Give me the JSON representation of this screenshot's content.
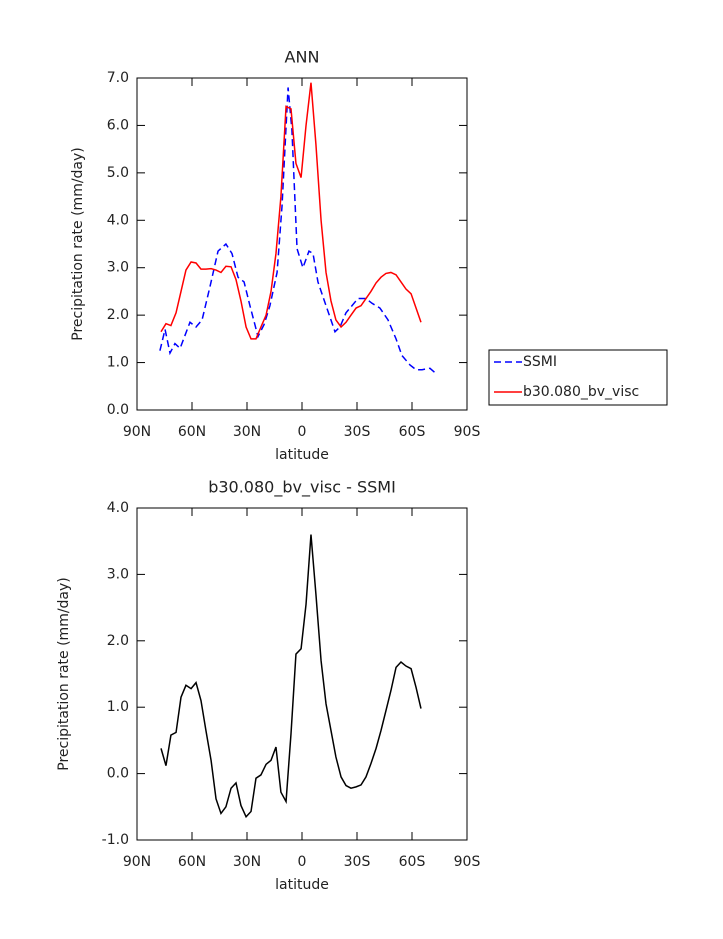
{
  "chart_data": [
    {
      "type": "line",
      "title": "ANN",
      "x_label": "latitude",
      "y_label": "Precipitation rate (mm/day)",
      "xlim": [
        90,
        -90
      ],
      "xticks": [
        {
          "value": 90,
          "label": "90N"
        },
        {
          "value": 60,
          "label": "60N"
        },
        {
          "value": 30,
          "label": "30N"
        },
        0,
        {
          "value": -30,
          "label": "30S"
        },
        {
          "value": -60,
          "label": "60S"
        },
        {
          "value": -90,
          "label": "90S"
        }
      ],
      "ylim": [
        0,
        7
      ],
      "yticks": [
        {
          "value": 0,
          "label": "0.0"
        },
        {
          "value": 1,
          "label": "1.0"
        },
        {
          "value": 2,
          "label": "2.0"
        },
        {
          "value": 3,
          "label": "3.0"
        },
        {
          "value": 4,
          "label": "4.0"
        },
        {
          "value": 5,
          "label": "5.0"
        },
        {
          "value": 6,
          "label": "6.0"
        },
        {
          "value": 7,
          "label": "7.0"
        }
      ],
      "legend": "right",
      "series": [
        {
          "name": "SSMI",
          "color": "#0000ff",
          "dash": true,
          "x": [
            77.5,
            74.7,
            72,
            69.3,
            66.5,
            61.1,
            57.8,
            54.5,
            50.2,
            45.8,
            41.5,
            38.2,
            34.9,
            31.6,
            28.4,
            24,
            20.7,
            17.5,
            13.6,
            10.9,
            7.6,
            5.5,
            2.7,
            -0.5,
            -3.8,
            -6,
            -8.7,
            -13.1,
            -18,
            -20.7,
            -24,
            -27.3,
            -30.5,
            -34.9,
            -38.2,
            -42.5,
            -46.9,
            -51.3,
            -54.5,
            -58.9,
            -62.2,
            -65.5,
            -69.8,
            -73.6
          ],
          "values": [
            1.25,
            1.7,
            1.2,
            1.4,
            1.3,
            1.85,
            1.75,
            1.9,
            2.6,
            3.35,
            3.5,
            3.3,
            2.8,
            2.7,
            2.2,
            1.55,
            1.8,
            2.2,
            2.9,
            4.3,
            6.8,
            5.9,
            3.4,
            3.0,
            3.35,
            3.3,
            2.7,
            2.2,
            1.65,
            1.75,
            2.05,
            2.2,
            2.35,
            2.35,
            2.25,
            2.15,
            1.9,
            1.5,
            1.15,
            0.95,
            0.85,
            0.85,
            0.88,
            0.75
          ]
        },
        {
          "name": "b30.080_bv_visc",
          "color": "#ff0000",
          "dash": false,
          "x": [
            76.9,
            74.2,
            71.5,
            68.7,
            66.0,
            63.3,
            60.5,
            57.8,
            55.1,
            52.4,
            49.6,
            46.9,
            44.2,
            41.5,
            38.7,
            36.0,
            33.3,
            30.5,
            27.8,
            25.1,
            22.4,
            19.6,
            16.9,
            14.2,
            11.5,
            8.7,
            6.0,
            3.3,
            0.5,
            -2.2,
            -4.9,
            -7.6,
            -10.4,
            -13.1,
            -15.8,
            -18.5,
            -21.3,
            -24.0,
            -26.7,
            -29.5,
            -32.2,
            -34.9,
            -37.6,
            -40.4,
            -43.1,
            -45.8,
            -48.5,
            -51.3,
            -54.0,
            -56.7,
            -59.5,
            -62.2,
            -64.9
          ],
          "values": [
            1.65,
            1.82,
            1.78,
            2.05,
            2.5,
            2.95,
            3.12,
            3.1,
            2.97,
            2.97,
            2.98,
            2.95,
            2.9,
            3.03,
            3.02,
            2.75,
            2.3,
            1.75,
            1.5,
            1.5,
            1.75,
            2.0,
            2.5,
            3.3,
            4.5,
            6.4,
            6.35,
            5.2,
            4.9,
            6.0,
            6.9,
            5.6,
            4.0,
            2.9,
            2.3,
            1.9,
            1.75,
            1.85,
            2.0,
            2.15,
            2.2,
            2.35,
            2.5,
            2.68,
            2.8,
            2.88,
            2.9,
            2.85,
            2.7,
            2.55,
            2.45,
            2.15,
            1.85
          ]
        }
      ]
    },
    {
      "type": "line",
      "title": "b30.080_bv_visc - SSMI",
      "x_label": "latitude",
      "y_label": "Precipitation rate (mm/day)",
      "xlim": [
        90,
        -90
      ],
      "xticks": [
        {
          "value": 90,
          "label": "90N"
        },
        {
          "value": 60,
          "label": "60N"
        },
        {
          "value": 30,
          "label": "30N"
        },
        0,
        {
          "value": -30,
          "label": "30S"
        },
        {
          "value": -60,
          "label": "60S"
        },
        {
          "value": -90,
          "label": "90S"
        }
      ],
      "ylim": [
        -1,
        4
      ],
      "yticks": [
        {
          "value": -1,
          "label": "-1.0"
        },
        {
          "value": 0,
          "label": "0.0"
        },
        {
          "value": 1,
          "label": "1.0"
        },
        {
          "value": 2,
          "label": "2.0"
        },
        {
          "value": 3,
          "label": "3.0"
        },
        {
          "value": 4,
          "label": "4.0"
        }
      ],
      "series": [
        {
          "color": "#000000",
          "dash": false,
          "x": [
            76.9,
            74.2,
            71.5,
            68.7,
            66.0,
            63.3,
            60.5,
            57.8,
            55.1,
            52.4,
            49.6,
            46.9,
            44.2,
            41.5,
            38.7,
            36.0,
            33.3,
            30.5,
            27.8,
            25.1,
            22.4,
            19.6,
            16.9,
            14.2,
            11.5,
            8.7,
            6.0,
            3.3,
            0.5,
            -2.2,
            -4.9,
            -7.6,
            -10.4,
            -13.1,
            -15.8,
            -18.5,
            -21.3,
            -24.0,
            -26.7,
            -29.5,
            -32.2,
            -34.9,
            -37.6,
            -40.4,
            -43.1,
            -45.8,
            -48.5,
            -51.3,
            -54.0,
            -56.7,
            -59.5,
            -62.2,
            -64.9
          ],
          "values": [
            0.38,
            0.12,
            0.58,
            0.62,
            1.15,
            1.33,
            1.28,
            1.37,
            1.1,
            0.65,
            0.2,
            -0.38,
            -0.6,
            -0.5,
            -0.22,
            -0.14,
            -0.48,
            -0.65,
            -0.57,
            -0.07,
            -0.02,
            0.14,
            0.2,
            0.4,
            -0.28,
            -0.42,
            0.6,
            1.8,
            1.88,
            2.55,
            3.6,
            2.7,
            1.7,
            1.05,
            0.65,
            0.25,
            -0.05,
            -0.18,
            -0.22,
            -0.2,
            -0.17,
            -0.05,
            0.15,
            0.38,
            0.65,
            0.95,
            1.25,
            1.6,
            1.68,
            1.62,
            1.58,
            1.3,
            0.98
          ]
        }
      ]
    }
  ]
}
